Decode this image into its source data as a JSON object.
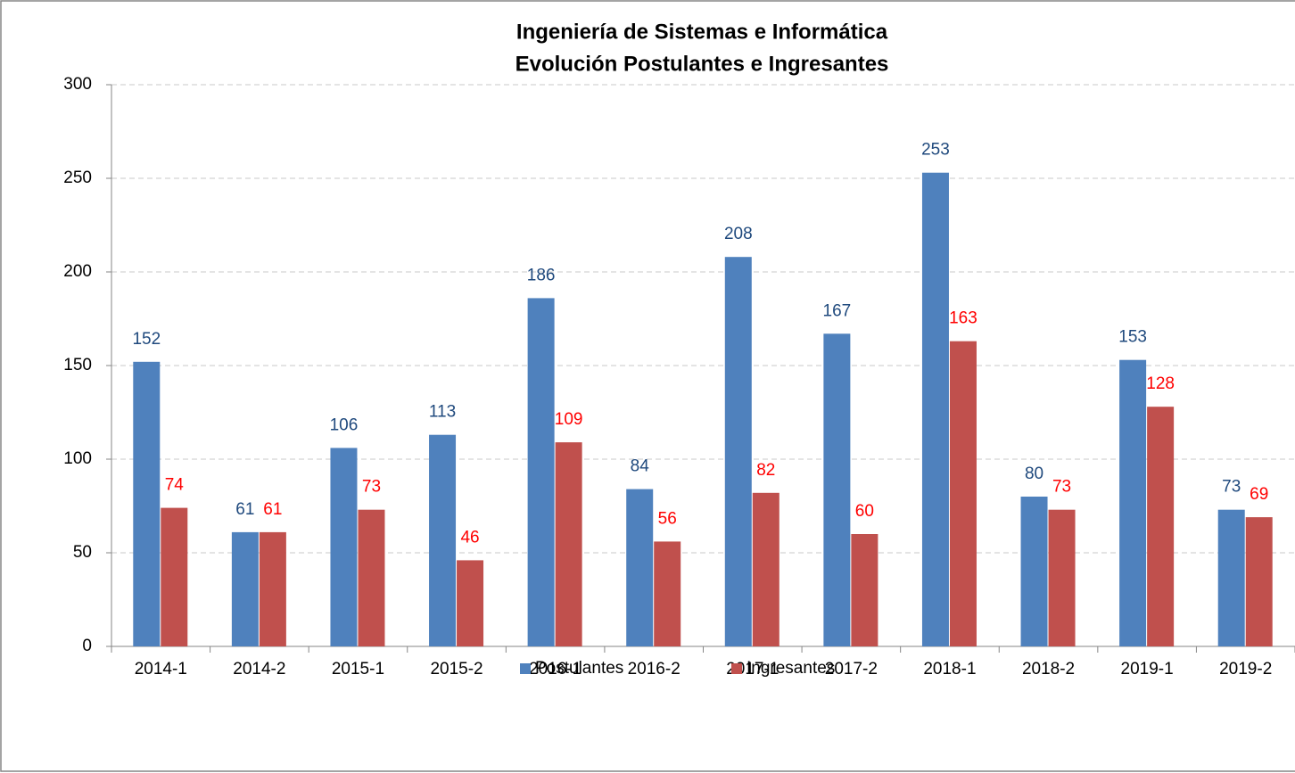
{
  "chart_data": {
    "type": "bar",
    "title": "Ingeniería de Sistemas e Informática",
    "subtitle": "Evolución Postulantes e Ingresantes",
    "categories": [
      "2014-1",
      "2014-2",
      "2015-1",
      "2015-2",
      "2016-1",
      "2016-2",
      "2017-1",
      "2017-2",
      "2018-1",
      "2018-2",
      "2019-1",
      "2019-2"
    ],
    "series": [
      {
        "name": "Postulantes",
        "color": "#4f81bd",
        "label_color": "#1f497d",
        "values": [
          152,
          61,
          106,
          113,
          186,
          84,
          208,
          167,
          253,
          80,
          153,
          73
        ]
      },
      {
        "name": "Ingresantes",
        "color": "#c0504d",
        "label_color": "#ff0000",
        "values": [
          74,
          61,
          73,
          46,
          109,
          56,
          82,
          60,
          163,
          73,
          128,
          69
        ]
      }
    ],
    "ylim": [
      0,
      300
    ],
    "yticks": [
      0,
      50,
      100,
      150,
      200,
      250,
      300
    ],
    "grid": true,
    "legend": "bottom"
  }
}
